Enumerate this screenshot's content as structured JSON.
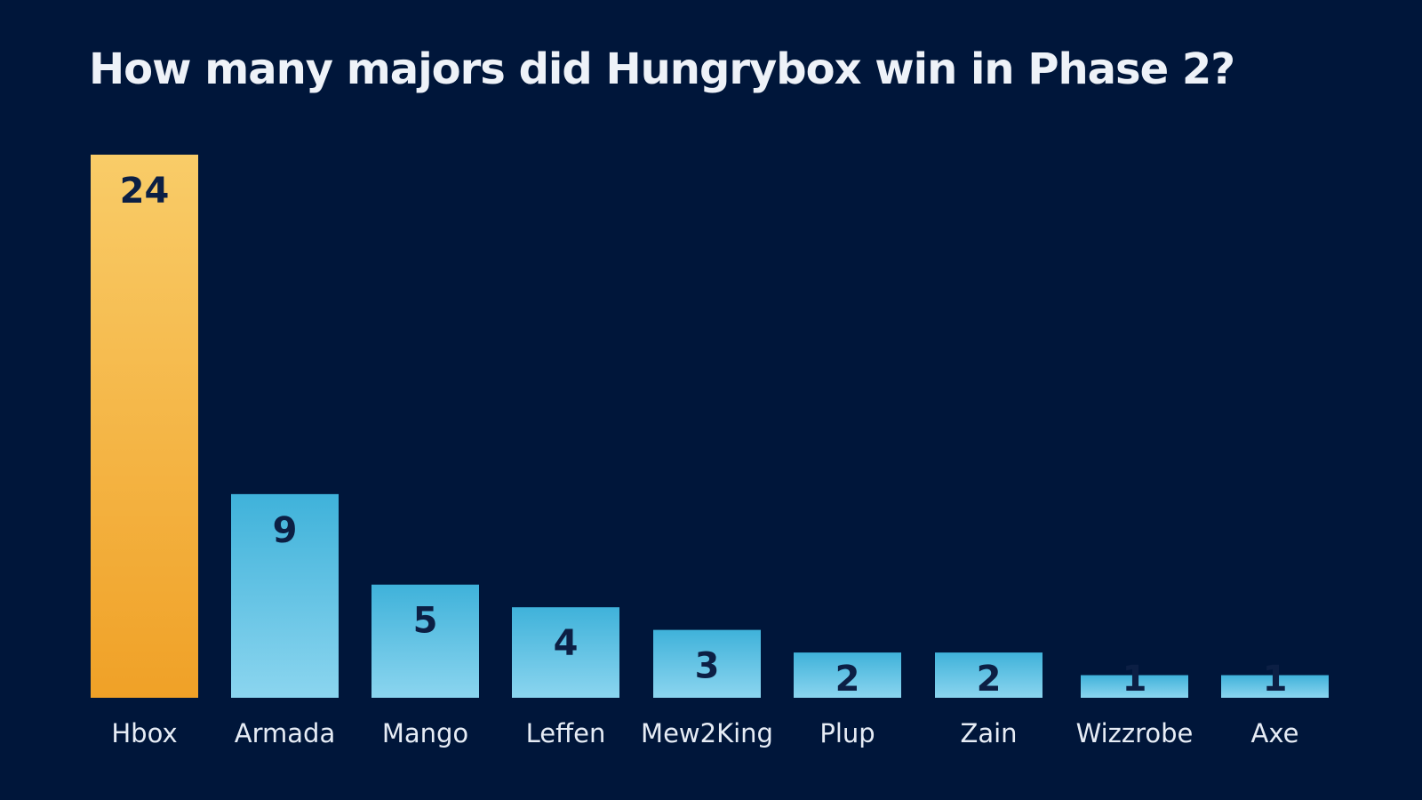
{
  "title": "How many majors did Hungrybox win in Phase 2?",
  "colors": {
    "background": "#00163a",
    "highlight_top": "#f9cc68",
    "highlight_bottom": "#f0a127",
    "bar_top": "#3fb2da",
    "bar_bottom": "#8bd5ef",
    "value_text": "#0c1f44",
    "category_text": "#e6ecf5"
  },
  "chart_data": {
    "type": "bar",
    "title": "How many majors did Hungrybox win in Phase 2?",
    "xlabel": "",
    "ylabel": "",
    "ylim": [
      0,
      24
    ],
    "grid": false,
    "legend": "none",
    "categories": [
      "Hbox",
      "Armada",
      "Mango",
      "Leffen",
      "Mew2King",
      "Plup",
      "Zain",
      "Wizzrobe",
      "Axe"
    ],
    "values": [
      24,
      9,
      5,
      4,
      3,
      2,
      2,
      1,
      1
    ],
    "highlight": "Hbox"
  }
}
